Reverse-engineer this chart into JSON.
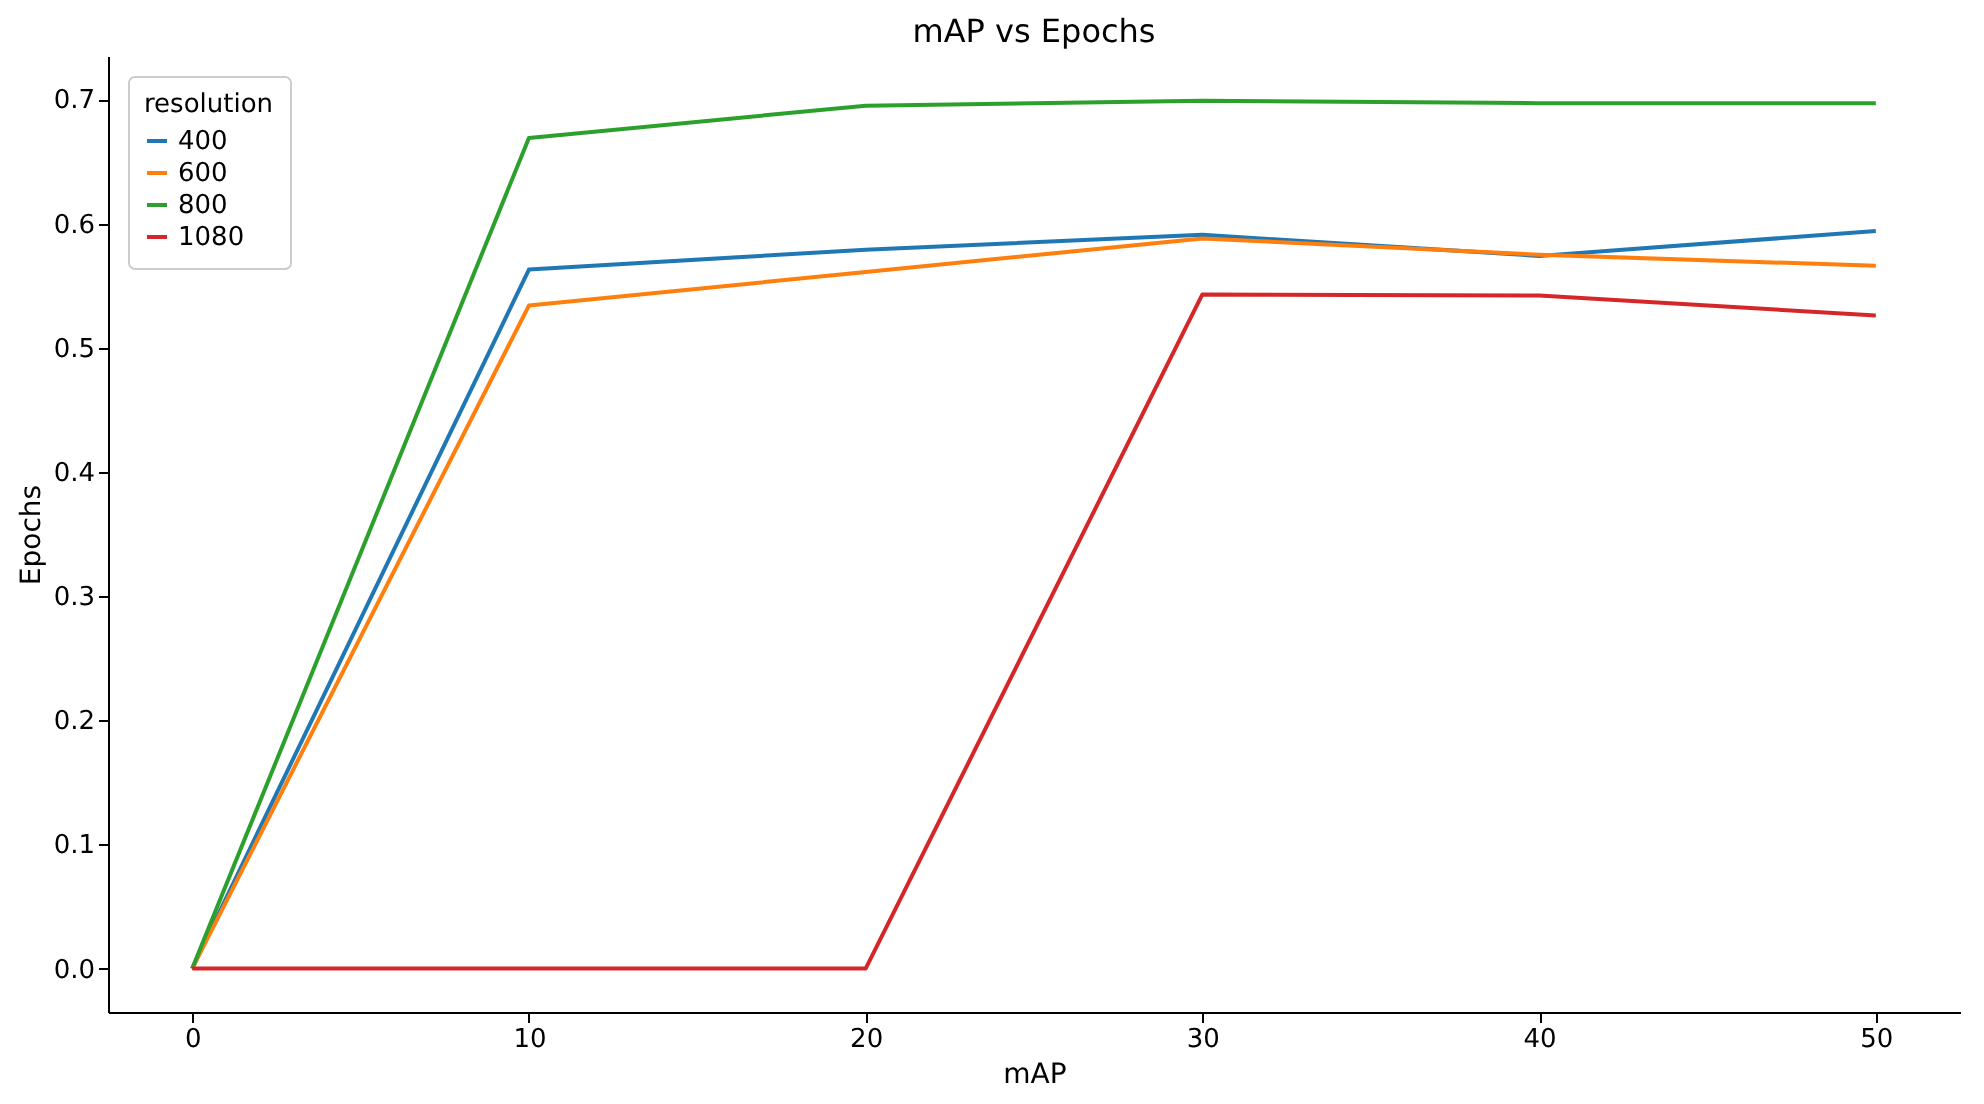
{
  "chart_data": {
    "type": "line",
    "title": "mAP vs Epochs",
    "xlabel": "mAP",
    "ylabel": "Epochs",
    "legend_title": "resolution",
    "legend": "top left",
    "grid": false,
    "x": [
      0,
      10,
      20,
      30,
      40,
      50
    ],
    "xlim": [
      -2.5,
      52.5
    ],
    "xticks": [
      0,
      10,
      20,
      30,
      40,
      50
    ],
    "ylim": [
      -0.035,
      0.735
    ],
    "yticks": [
      {
        "value": 0,
        "label": "0.0"
      },
      0.1,
      0.2,
      0.3,
      0.4,
      0.5,
      0.6,
      0.7
    ],
    "series": [
      {
        "name": "400",
        "color": "#1f77b4",
        "values": [
          0,
          0.563,
          0.579,
          0.591,
          0.574,
          0.594
        ]
      },
      {
        "name": "600",
        "color": "#ff7f0e",
        "values": [
          0,
          0.534,
          0.561,
          0.588,
          0.575,
          0.566
        ]
      },
      {
        "name": "800",
        "color": "#2ca02c",
        "values": [
          0,
          0.669,
          0.695,
          0.699,
          0.697,
          0.697
        ]
      },
      {
        "name": "1080",
        "color": "#d62728",
        "values": [
          0,
          0,
          0,
          0.543,
          0.542,
          0.526
        ]
      }
    ]
  }
}
